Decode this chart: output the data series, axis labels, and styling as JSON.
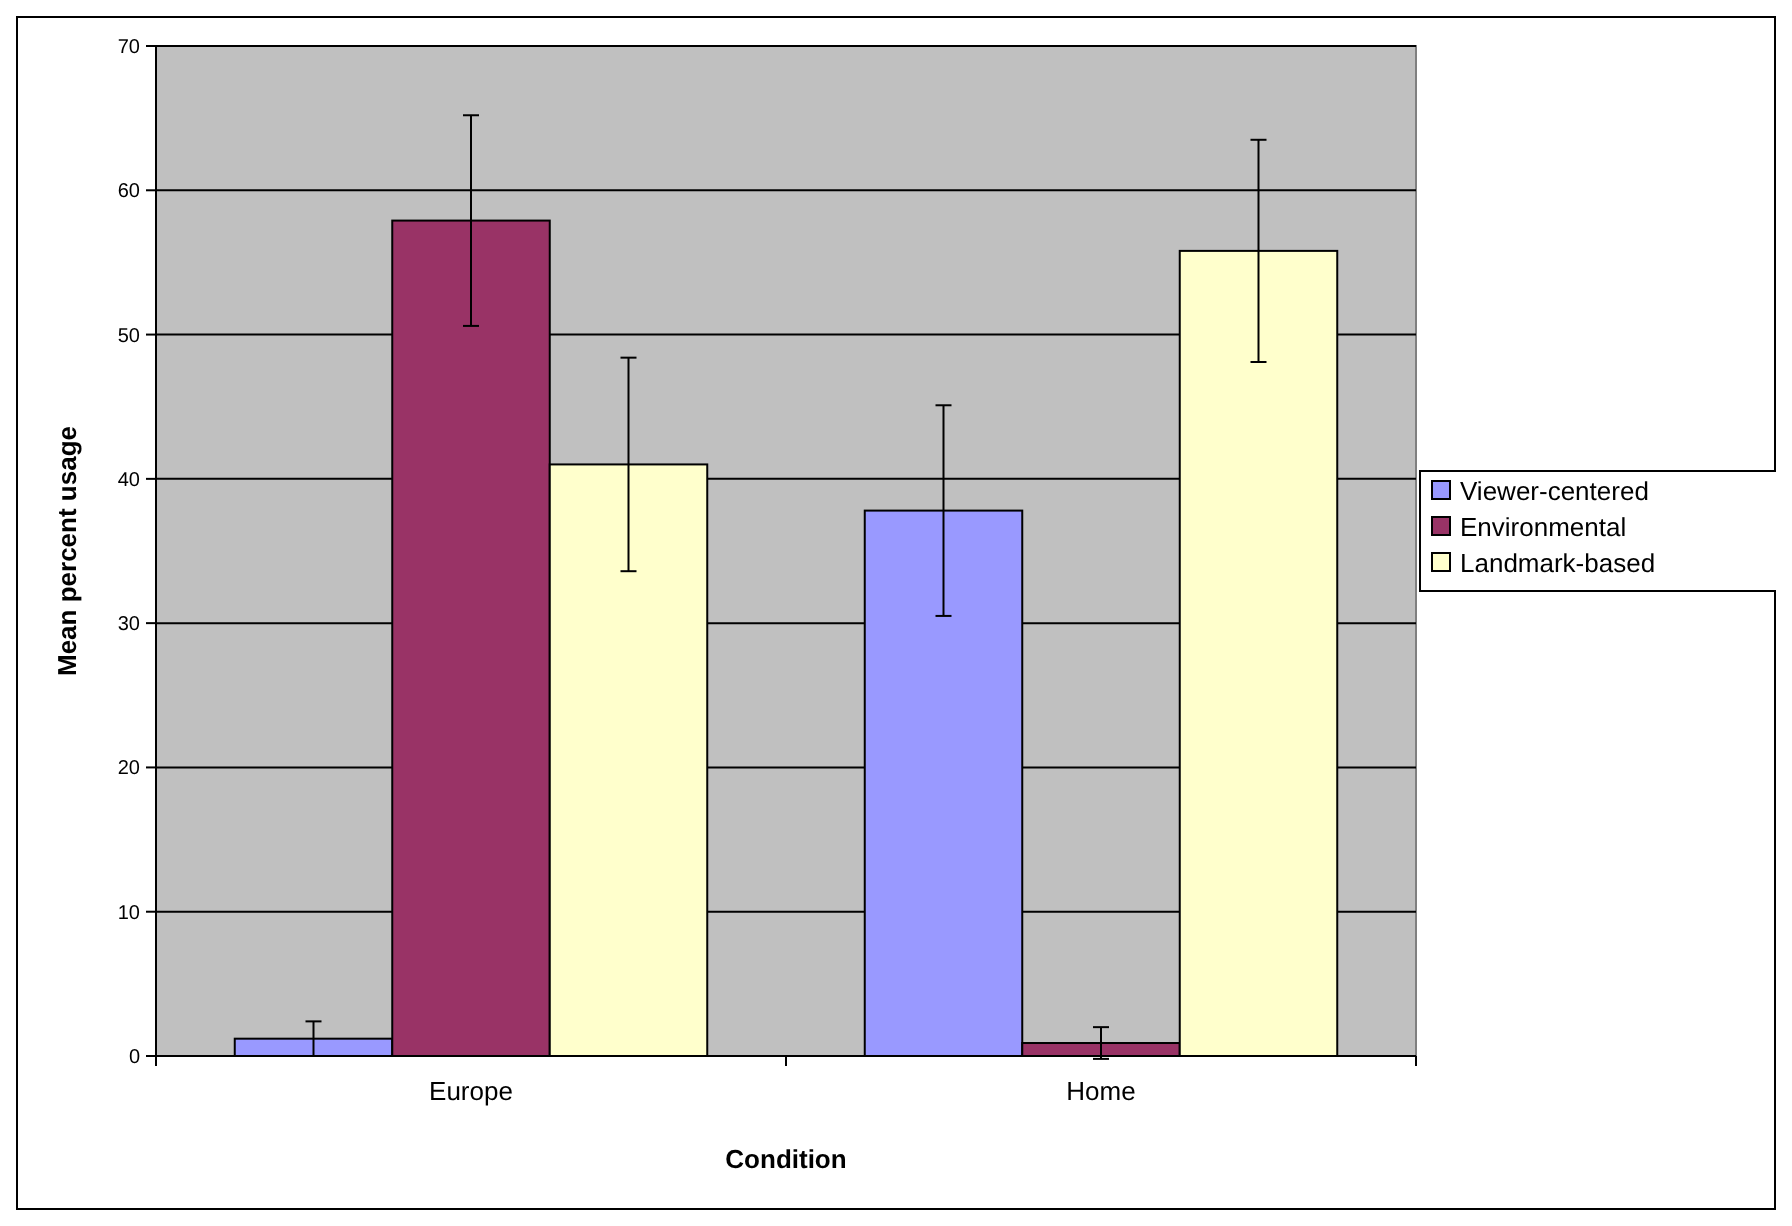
{
  "chart_data": {
    "type": "bar",
    "xlabel": "Condition",
    "ylabel": "Mean percent usage",
    "categories": [
      "Europe",
      "Home"
    ],
    "series": [
      {
        "name": "Viewer-centered",
        "color": "#9999ff",
        "values": [
          1.2,
          37.8
        ],
        "errors": [
          1.2,
          7.3
        ]
      },
      {
        "name": "Environmental",
        "color": "#993366",
        "values": [
          57.9,
          0.9
        ],
        "errors": [
          7.3,
          1.1
        ]
      },
      {
        "name": "Landmark-based",
        "color": "#ffffcc",
        "values": [
          41.0,
          55.8
        ],
        "errors": [
          7.4,
          7.7
        ]
      }
    ],
    "ylim": [
      0,
      70
    ],
    "yticks": [
      0,
      10,
      20,
      30,
      40,
      50,
      60,
      70
    ],
    "grid": "y",
    "legend": "right"
  }
}
